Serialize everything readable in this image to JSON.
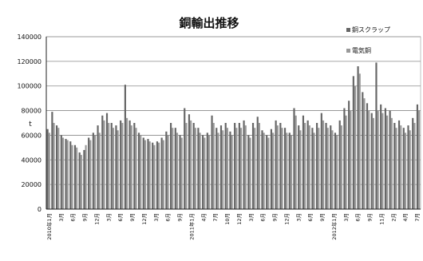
{
  "chart_data": {
    "type": "bar",
    "title": "銅輸出推移",
    "ylabel": "t",
    "ylim": [
      0,
      140000
    ],
    "yticks": [
      "0",
      "20000",
      "40000",
      "60000",
      "80000",
      "100000",
      "120000",
      "140000"
    ],
    "grid": true,
    "legend": "top-right",
    "x_tick_labels": [
      "2010年1月",
      "3月",
      "6月",
      "9月",
      "12月",
      "3月",
      "6月",
      "9月",
      "12月",
      "3月",
      "6月",
      "9月",
      "2011年1月",
      "4月",
      "7月",
      "10月",
      "12月",
      "3月",
      "6月",
      "9月",
      "12月",
      "3月",
      "6月",
      "9月",
      "2012年1月",
      "3月",
      "6月",
      "9月",
      "11月",
      "2月",
      "4月",
      "7月"
    ],
    "series": [
      {
        "name": "銅スクラップ",
        "color": "#666666",
        "values": [
          65000,
          79000,
          68000,
          60000,
          57000,
          55000,
          52000,
          46000,
          48000,
          58000,
          62000,
          68000,
          76000,
          78000,
          70000,
          68000,
          72000,
          101000,
          72000,
          70000,
          62000,
          58000,
          57000,
          54000,
          55000,
          58000,
          63000,
          70000,
          66000,
          60000,
          82000,
          77000,
          70000,
          66000,
          60000,
          62000,
          76000,
          66000,
          68000,
          70000,
          63000,
          70000,
          70000,
          72000,
          60000,
          70000,
          75000,
          64000,
          60000,
          65000,
          72000,
          70000,
          66000,
          62000,
          82000,
          68000,
          76000,
          72000,
          66000,
          70000,
          78000,
          70000,
          68000,
          62000,
          72000,
          82000,
          88000,
          108000,
          116000,
          95000,
          86000,
          78000,
          119000,
          85000,
          82000,
          80000,
          70000,
          72000,
          66000,
          68000,
          74000,
          85000
        ]
      },
      {
        "name": "電気銅",
        "color": "#999999",
        "values": [
          62000,
          70000,
          66000,
          58000,
          56000,
          52000,
          50000,
          44000,
          52000,
          56000,
          60000,
          62000,
          72000,
          70000,
          66000,
          64000,
          70000,
          74000,
          68000,
          66000,
          60000,
          56000,
          55000,
          52000,
          54000,
          56000,
          60000,
          66000,
          62000,
          58000,
          70000,
          72000,
          66000,
          62000,
          58000,
          60000,
          70000,
          62000,
          64000,
          66000,
          60000,
          66000,
          66000,
          68000,
          58000,
          66000,
          70000,
          62000,
          58000,
          62000,
          68000,
          66000,
          62000,
          60000,
          76000,
          64000,
          70000,
          68000,
          62000,
          66000,
          72000,
          66000,
          64000,
          60000,
          68000,
          76000,
          80000,
          100000,
          110000,
          90000,
          80000,
          74000,
          80000,
          78000,
          76000,
          74000,
          66000,
          68000,
          62000,
          64000,
          70000,
          80000
        ]
      }
    ]
  }
}
